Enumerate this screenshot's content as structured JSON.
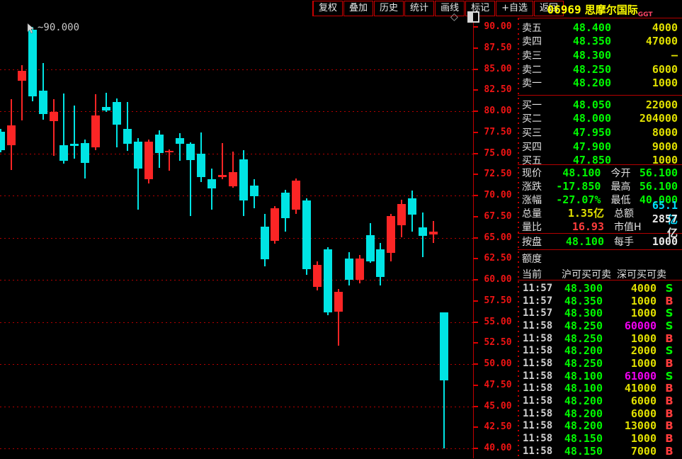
{
  "toolbar": {
    "buttons": [
      "复权",
      "叠加",
      "历史",
      "统计",
      "画线",
      "标记",
      "+自选",
      "返回"
    ]
  },
  "header": {
    "code": "06969",
    "name": "思摩尔国际",
    "market_tag": "GGT"
  },
  "chart_icons": {
    "diamond": "◇"
  },
  "cursor_label": "~90.000",
  "order_book": {
    "asks": [
      {
        "label": "卖五",
        "price": "48.400",
        "volume": "4000"
      },
      {
        "label": "卖四",
        "price": "48.350",
        "volume": "47000"
      },
      {
        "label": "卖三",
        "price": "48.300",
        "volume": "—"
      },
      {
        "label": "卖二",
        "price": "48.250",
        "volume": "6000"
      },
      {
        "label": "卖一",
        "price": "48.200",
        "volume": "1000"
      }
    ],
    "bids": [
      {
        "label": "买一",
        "price": "48.050",
        "volume": "22000"
      },
      {
        "label": "买二",
        "price": "48.000",
        "volume": "204000"
      },
      {
        "label": "买三",
        "price": "47.950",
        "volume": "8000"
      },
      {
        "label": "买四",
        "price": "47.900",
        "volume": "9000"
      },
      {
        "label": "买五",
        "price": "47.850",
        "volume": "1000"
      }
    ]
  },
  "quote": {
    "rows": [
      {
        "l1": "现价",
        "v1": "48.100",
        "c1": "green",
        "l2": "今开",
        "v2": "56.100",
        "c2": "green"
      },
      {
        "l1": "涨跌",
        "v1": "-17.850",
        "c1": "green",
        "l2": "最高",
        "v2": "56.100",
        "c2": "green"
      },
      {
        "l1": "涨幅",
        "v1": "-27.07%",
        "c1": "green",
        "l2": "最低",
        "v2": "40.000",
        "c2": "green"
      },
      {
        "l1": "总量",
        "v1": "1.35亿",
        "c1": "yellow",
        "l2": "总额",
        "v2": "65.1亿",
        "c2": "cyan"
      },
      {
        "l1": "量比",
        "v1": "16.93",
        "c1": "red",
        "l2": "市值H",
        "v2": "2857亿",
        "c2": "white"
      }
    ],
    "board_row": {
      "l1": "按盘",
      "v1": "48.100",
      "c1": "green",
      "l2": "每手",
      "v2": "1000",
      "c2": "white"
    }
  },
  "quota": {
    "line1": "额度",
    "line2": "当前",
    "sh": "沪可买可卖",
    "sz": "深可买可卖"
  },
  "trades": [
    {
      "time": "11:57",
      "price": "48.300",
      "volume": "4000",
      "vc": "yellow",
      "side": "S"
    },
    {
      "time": "11:57",
      "price": "48.350",
      "volume": "1000",
      "vc": "yellow",
      "side": "B"
    },
    {
      "time": "11:57",
      "price": "48.300",
      "volume": "1000",
      "vc": "yellow",
      "side": "S"
    },
    {
      "time": "11:58",
      "price": "48.250",
      "volume": "60000",
      "vc": "magenta",
      "side": "S"
    },
    {
      "time": "11:58",
      "price": "48.250",
      "volume": "1000",
      "vc": "yellow",
      "side": "B"
    },
    {
      "time": "11:58",
      "price": "48.200",
      "volume": "2000",
      "vc": "yellow",
      "side": "S"
    },
    {
      "time": "11:58",
      "price": "48.250",
      "volume": "1000",
      "vc": "yellow",
      "side": "B"
    },
    {
      "time": "11:58",
      "price": "48.100",
      "volume": "61000",
      "vc": "magenta",
      "side": "S"
    },
    {
      "time": "11:58",
      "price": "48.100",
      "volume": "41000",
      "vc": "yellow",
      "side": "B"
    },
    {
      "time": "11:58",
      "price": "48.200",
      "volume": "6000",
      "vc": "yellow",
      "side": "B"
    },
    {
      "time": "11:58",
      "price": "48.200",
      "volume": "6000",
      "vc": "yellow",
      "side": "B"
    },
    {
      "time": "11:58",
      "price": "48.200",
      "volume": "13000",
      "vc": "yellow",
      "side": "B"
    },
    {
      "time": "11:58",
      "price": "48.150",
      "volume": "1000",
      "vc": "yellow",
      "side": "B"
    },
    {
      "time": "11:58",
      "price": "48.150",
      "volume": "7000",
      "vc": "yellow",
      "side": "B"
    }
  ],
  "chart_data": {
    "type": "candlestick",
    "title": "06969 思摩尔国际 日K",
    "y_min": 40.0,
    "y_max": 90.0,
    "tick_step": 2.5,
    "grid_step": 5.0,
    "y_tick_labels": [
      "90.00",
      "87.50",
      "85.00",
      "82.50",
      "80.00",
      "77.50",
      "75.00",
      "72.50",
      "70.00",
      "67.50",
      "65.00",
      "62.50",
      "60.00",
      "57.50",
      "55.00",
      "52.50",
      "50.00",
      "47.50",
      "45.00",
      "42.50",
      "40.00"
    ],
    "grid_levels": [
      85,
      80,
      75,
      70,
      65,
      60,
      55,
      50,
      45,
      40
    ],
    "up_color": "#fb2525",
    "down_color": "#00e4e4",
    "annotation": {
      "text": "~90.000",
      "price": 90.0
    },
    "candles": [
      {
        "dir": "down",
        "o": 77.6,
        "h": 77.9,
        "l": 75.1,
        "c": 75.4
      },
      {
        "dir": "up",
        "o": 76.0,
        "h": 81.4,
        "l": 73.0,
        "c": 78.3
      },
      {
        "dir": "up",
        "o": 83.6,
        "h": 85.5,
        "l": 78.9,
        "c": 84.8
      },
      {
        "dir": "down",
        "o": 89.7,
        "h": 90.0,
        "l": 81.2,
        "c": 81.8
      },
      {
        "dir": "down",
        "o": 82.4,
        "h": 85.7,
        "l": 79.0,
        "c": 79.7
      },
      {
        "dir": "up",
        "o": 78.8,
        "h": 81.4,
        "l": 74.7,
        "c": 79.9
      },
      {
        "dir": "down",
        "o": 76.0,
        "h": 82.1,
        "l": 73.8,
        "c": 74.1
      },
      {
        "dir": "down",
        "o": 76.1,
        "h": 80.7,
        "l": 74.4,
        "c": 75.9
      },
      {
        "dir": "down",
        "o": 76.2,
        "h": 76.6,
        "l": 72.0,
        "c": 73.9
      },
      {
        "dir": "up",
        "o": 75.7,
        "h": 82.0,
        "l": 75.4,
        "c": 79.5
      },
      {
        "dir": "down",
        "o": 80.5,
        "h": 82.2,
        "l": 79.9,
        "c": 80.1
      },
      {
        "dir": "down",
        "o": 81.1,
        "h": 81.5,
        "l": 75.7,
        "c": 78.4
      },
      {
        "dir": "down",
        "o": 77.9,
        "h": 81.1,
        "l": 75.3,
        "c": 76.1
      },
      {
        "dir": "down",
        "o": 76.4,
        "h": 76.8,
        "l": 68.3,
        "c": 73.2
      },
      {
        "dir": "up",
        "o": 71.9,
        "h": 76.6,
        "l": 71.4,
        "c": 76.4
      },
      {
        "dir": "down",
        "o": 77.2,
        "h": 77.7,
        "l": 73.3,
        "c": 75.0
      },
      {
        "dir": "up",
        "o": 75.1,
        "h": 75.5,
        "l": 72.9,
        "c": 75.3
      },
      {
        "dir": "down",
        "o": 76.8,
        "h": 77.4,
        "l": 74.1,
        "c": 76.1
      },
      {
        "dir": "down",
        "o": 76.1,
        "h": 76.3,
        "l": 67.6,
        "c": 74.2
      },
      {
        "dir": "down",
        "o": 75.0,
        "h": 77.5,
        "l": 71.6,
        "c": 72.2
      },
      {
        "dir": "down",
        "o": 71.9,
        "h": 73.2,
        "l": 68.3,
        "c": 70.8
      },
      {
        "dir": "up",
        "o": 72.2,
        "h": 76.2,
        "l": 71.9,
        "c": 72.4
      },
      {
        "dir": "up",
        "o": 71.1,
        "h": 75.2,
        "l": 70.9,
        "c": 72.8
      },
      {
        "dir": "down",
        "o": 74.3,
        "h": 75.4,
        "l": 67.6,
        "c": 69.4
      },
      {
        "dir": "down",
        "o": 71.2,
        "h": 71.9,
        "l": 68.5,
        "c": 69.9
      },
      {
        "dir": "down",
        "o": 66.3,
        "h": 67.8,
        "l": 61.6,
        "c": 62.4
      },
      {
        "dir": "up",
        "o": 64.6,
        "h": 68.7,
        "l": 64.3,
        "c": 68.5
      },
      {
        "dir": "down",
        "o": 70.3,
        "h": 70.7,
        "l": 65.7,
        "c": 67.3
      },
      {
        "dir": "up",
        "o": 68.3,
        "h": 72.0,
        "l": 67.8,
        "c": 71.8
      },
      {
        "dir": "down",
        "o": 69.4,
        "h": 69.7,
        "l": 60.6,
        "c": 61.3
      },
      {
        "dir": "up",
        "o": 59.2,
        "h": 62.2,
        "l": 58.7,
        "c": 61.8
      },
      {
        "dir": "down",
        "o": 63.6,
        "h": 63.9,
        "l": 55.8,
        "c": 56.1
      },
      {
        "dir": "up",
        "o": 56.2,
        "h": 58.9,
        "l": 52.2,
        "c": 58.6
      },
      {
        "dir": "down",
        "o": 62.5,
        "h": 63.3,
        "l": 59.3,
        "c": 60.0
      },
      {
        "dir": "up",
        "o": 60.0,
        "h": 62.9,
        "l": 59.6,
        "c": 62.5
      },
      {
        "dir": "down",
        "o": 65.3,
        "h": 66.7,
        "l": 62.0,
        "c": 62.2
      },
      {
        "dir": "down",
        "o": 63.6,
        "h": 64.4,
        "l": 59.3,
        "c": 60.3
      },
      {
        "dir": "up",
        "o": 63.2,
        "h": 67.8,
        "l": 62.2,
        "c": 67.6
      },
      {
        "dir": "up",
        "o": 66.5,
        "h": 69.5,
        "l": 65.0,
        "c": 69.0
      },
      {
        "dir": "down",
        "o": 69.7,
        "h": 70.6,
        "l": 65.7,
        "c": 67.7
      },
      {
        "dir": "down",
        "o": 66.2,
        "h": 68.0,
        "l": 62.7,
        "c": 65.2
      },
      {
        "dir": "up",
        "o": 65.4,
        "h": 67.0,
        "l": 64.4,
        "c": 65.7
      },
      {
        "dir": "down",
        "o": 56.1,
        "h": 56.1,
        "l": 40.0,
        "c": 48.1
      }
    ]
  },
  "colors": {
    "up": "#fb2525",
    "down": "#00e4e4",
    "grid": "#b40000",
    "axis_text": "#f01414",
    "price_green": "#00f800",
    "volume_yellow": "#e0e000",
    "big_lot_magenta": "#f000f0",
    "amount_cyan": "#00dcff",
    "title_yellow": "#ffff00"
  }
}
